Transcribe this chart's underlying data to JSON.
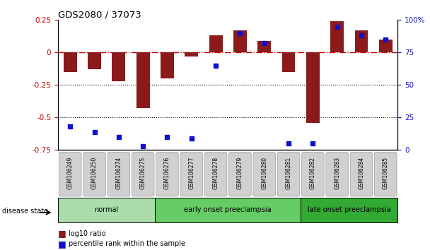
{
  "title": "GDS2080 / 37073",
  "samples": [
    "GSM106249",
    "GSM106250",
    "GSM106274",
    "GSM106275",
    "GSM106276",
    "GSM106277",
    "GSM106278",
    "GSM106279",
    "GSM106280",
    "GSM106281",
    "GSM106282",
    "GSM106283",
    "GSM106284",
    "GSM106285"
  ],
  "log10_ratio": [
    -0.15,
    -0.13,
    -0.22,
    -0.43,
    -0.2,
    -0.03,
    0.13,
    0.17,
    0.09,
    -0.15,
    -0.54,
    0.24,
    0.17,
    0.1
  ],
  "percentile_rank": [
    18,
    14,
    10,
    3,
    10,
    9,
    65,
    90,
    82,
    5,
    5,
    95,
    88,
    85
  ],
  "bar_color": "#8B1A1A",
  "dot_color": "#1111CC",
  "ylim_left": [
    -0.75,
    0.25
  ],
  "ylim_right": [
    0,
    100
  ],
  "hline_0_color": "#CC0000",
  "hline_neg025_color": "#000000",
  "hline_neg05_color": "#000000",
  "groups": [
    {
      "label": "normal",
      "start": 0,
      "end": 3,
      "color": "#AADDAA"
    },
    {
      "label": "early onset preeclampsia",
      "start": 4,
      "end": 9,
      "color": "#66CC66"
    },
    {
      "label": "late onset preeclampsia",
      "start": 10,
      "end": 13,
      "color": "#33AA33"
    }
  ],
  "legend_items": [
    {
      "label": "log10 ratio",
      "color": "#8B1A1A"
    },
    {
      "label": "percentile rank within the sample",
      "color": "#1111CC"
    }
  ],
  "disease_state_label": "disease state",
  "bar_width": 0.55,
  "background_color": "#FFFFFF",
  "tick_label_color_left": "#CC0000",
  "tick_label_color_right": "#1111CC",
  "yticks_left": [
    0.25,
    0.0,
    -0.25,
    -0.5,
    -0.75
  ],
  "ytick_labels_left": [
    "0.25",
    "0",
    "-0.25",
    "-0.5",
    "-0.75"
  ],
  "yticks_right": [
    0,
    25,
    50,
    75,
    100
  ],
  "ytick_labels_right": [
    "0",
    "25",
    "50",
    "75",
    "100%"
  ]
}
